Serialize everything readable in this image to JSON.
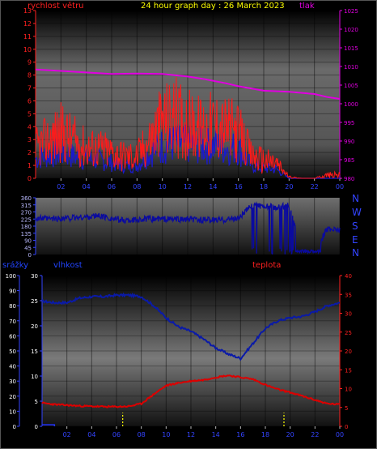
{
  "header": {
    "wind_label": "rychlost větru",
    "title": "24 hour graph day : 26 March 2023",
    "pressure_label": "tlak"
  },
  "directions": [
    "N",
    "W",
    "S",
    "E",
    "N"
  ],
  "bottom_labels": {
    "rain": "srážky",
    "humidity": "vlhkost",
    "temperature": "teplota"
  },
  "colors": {
    "wind": "#ff1a1a",
    "gust": "#1a1acc",
    "pressure": "#e000e0",
    "direction": "#0a0aa0",
    "humidity": "#0a1aa8",
    "temperature": "#dd0000",
    "rain": "#2233ff",
    "title": "#ffff00"
  },
  "chart_data": [
    {
      "type": "line",
      "id": "wind-pressure",
      "x_ticks": [
        "02",
        "04",
        "06",
        "08",
        "10",
        "12",
        "14",
        "16",
        "18",
        "20",
        "22",
        "00"
      ],
      "left_axis": {
        "label": "rychlost větru",
        "ylim": [
          0,
          13
        ],
        "ticks": [
          0,
          1,
          2,
          3,
          4,
          5,
          6,
          7,
          8,
          9,
          10,
          11,
          12,
          13
        ]
      },
      "right_axis": {
        "label": "tlak",
        "ylim": [
          980,
          1025
        ],
        "ticks": [
          980,
          985,
          990,
          995,
          1000,
          1005,
          1010,
          1015,
          1020,
          1025
        ]
      },
      "series": [
        {
          "name": "tlak",
          "x": [
            0,
            2,
            4,
            6,
            8,
            10,
            12,
            13.5,
            15,
            16,
            17,
            18,
            20,
            22,
            23,
            24
          ],
          "y": [
            1009.2,
            1008.8,
            1008.4,
            1008.0,
            1008.1,
            1008.0,
            1007.3,
            1006.5,
            1005.5,
            1004.7,
            1004.1,
            1003.5,
            1003.2,
            1002.6,
            1001.8,
            1001.3
          ]
        },
        {
          "name": "wind_max",
          "x": [
            0,
            1,
            2,
            3,
            4,
            5,
            6,
            7,
            8,
            9,
            10,
            11,
            12,
            13,
            14,
            15,
            16,
            17,
            18,
            19,
            20,
            21,
            22,
            23,
            24
          ],
          "y": [
            4,
            5,
            6,
            5,
            4,
            4,
            3.5,
            3,
            3,
            5,
            7.5,
            8,
            7,
            6.5,
            7,
            6.5,
            6,
            3,
            2.5,
            2,
            0.2,
            0,
            0,
            0.5,
            0.5
          ]
        },
        {
          "name": "wind_avg",
          "x": [
            0,
            1,
            2,
            3,
            4,
            5,
            6,
            7,
            8,
            9,
            10,
            11,
            12,
            13,
            14,
            15,
            16,
            17,
            18,
            19,
            20,
            21,
            22,
            23,
            24
          ],
          "y": [
            2.5,
            3,
            3.5,
            3,
            2.5,
            2.5,
            2,
            1.5,
            1.5,
            3,
            5,
            5,
            4.5,
            4.5,
            4.5,
            4.5,
            4,
            1.5,
            1,
            1,
            0,
            0,
            0,
            0,
            0
          ]
        },
        {
          "name": "gust_avg",
          "x": [
            0,
            1,
            2,
            3,
            4,
            5,
            6,
            7,
            8,
            9,
            10,
            11,
            12,
            13,
            14,
            15,
            16,
            17,
            18,
            19,
            20,
            21,
            22,
            23,
            24
          ],
          "y": [
            1.5,
            1.8,
            2,
            1.7,
            1.5,
            1.4,
            1.2,
            1,
            1,
            2,
            2.5,
            2.7,
            2.6,
            2.5,
            2.5,
            2.4,
            2.3,
            1,
            0.8,
            0.7,
            0,
            0,
            0,
            0,
            0
          ]
        }
      ]
    },
    {
      "type": "line",
      "id": "wind-direction",
      "y_ticks": [
        0,
        45,
        90,
        135,
        180,
        225,
        270,
        315,
        360
      ],
      "ylim": [
        0,
        360
      ],
      "series": [
        {
          "name": "direction",
          "x": [
            0,
            1,
            2,
            3,
            4,
            5,
            6,
            7,
            8,
            9,
            10,
            11,
            12,
            13,
            14,
            15,
            16,
            17,
            18,
            19,
            20,
            21,
            22,
            23,
            24
          ],
          "y": [
            230,
            225,
            228,
            232,
            238,
            245,
            228,
            215,
            222,
            225,
            225,
            222,
            222,
            220,
            218,
            222,
            230,
            305,
            310,
            300,
            310,
            20,
            20,
            160,
            160
          ]
        }
      ]
    },
    {
      "type": "line",
      "id": "temp-humidity-rain",
      "x_ticks": [
        "02",
        "04",
        "06",
        "08",
        "10",
        "12",
        "14",
        "16",
        "18",
        "20",
        "22",
        "00"
      ],
      "rain_axis": {
        "label": "srážky",
        "ylim": [
          0,
          100
        ],
        "ticks": [
          0,
          10,
          20,
          30,
          40,
          50,
          60,
          70,
          80,
          90,
          100
        ]
      },
      "humidity_axis": {
        "label": "vlhkost",
        "ylim": [
          0,
          30
        ],
        "ticks": [
          0,
          5,
          10,
          15,
          20,
          25,
          30
        ]
      },
      "temperature_axis": {
        "label": "teplota",
        "ylim": [
          0,
          40
        ],
        "ticks": [
          0,
          5,
          10,
          15,
          20,
          25,
          30,
          35,
          40
        ]
      },
      "series": [
        {
          "name": "vlhkost",
          "x": [
            0,
            1,
            2,
            3,
            4,
            5,
            6,
            7,
            8,
            9,
            10,
            11,
            12,
            13,
            14,
            15,
            16,
            17,
            18,
            19,
            20,
            21,
            22,
            23,
            24
          ],
          "y": [
            83,
            82,
            82,
            85,
            86,
            86,
            87,
            87,
            86,
            80,
            72,
            66,
            63,
            58,
            52,
            48,
            45,
            55,
            65,
            70,
            72,
            73,
            76,
            80,
            82
          ]
        },
        {
          "name": "teplota",
          "x": [
            0,
            1,
            2,
            3,
            4,
            5,
            6,
            7,
            8,
            9,
            10,
            11,
            12,
            13,
            14,
            15,
            16,
            17,
            18,
            19,
            20,
            21,
            22,
            23,
            24
          ],
          "y": [
            6.2,
            5.8,
            5.6,
            5.4,
            5.3,
            5.2,
            5.2,
            5.3,
            6,
            8.5,
            10.8,
            11.5,
            12,
            12.3,
            13,
            13.5,
            13,
            12.5,
            11,
            9.8,
            9,
            8,
            7,
            6,
            5.8
          ]
        },
        {
          "name": "srážky",
          "x": [
            0,
            0.5,
            1,
            6.5,
            19.5
          ],
          "y": [
            1,
            1,
            0,
            0.8,
            0.8
          ]
        }
      ]
    }
  ]
}
